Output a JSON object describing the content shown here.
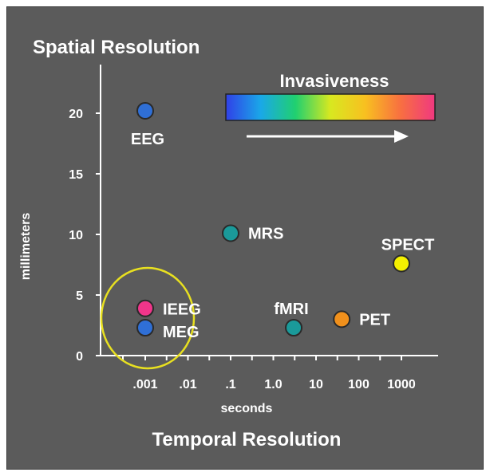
{
  "chart_data": {
    "type": "scatter",
    "title": "Spatial Resolution",
    "x_title": "Temporal Resolution",
    "xlabel": "seconds",
    "ylabel": "millimeters",
    "x_scale": "log",
    "x_ticks": [
      {
        "label": ".001",
        "value": 0.001
      },
      {
        "label": ".01",
        "value": 0.01
      },
      {
        "label": ".1",
        "value": 0.1
      },
      {
        "label": "1.0",
        "value": 1
      },
      {
        "label": "10",
        "value": 10
      },
      {
        "label": "100",
        "value": 100
      },
      {
        "label": "1000",
        "value": 1000
      }
    ],
    "y_ticks": [
      "0",
      "5",
      "10",
      "15",
      "20"
    ],
    "ylim": [
      0,
      23
    ],
    "points": [
      {
        "label": "EEG",
        "x": 0.001,
        "y": 20.2,
        "color": "#2f6fd6"
      },
      {
        "label": "MRS",
        "x": 0.1,
        "y": 10.1,
        "color": "#1a9a9a"
      },
      {
        "label": "SPECT",
        "x": 1000,
        "y": 7.6,
        "color": "#f4f000"
      },
      {
        "label": "IEEG",
        "x": 0.001,
        "y": 3.9,
        "color": "#f0358a"
      },
      {
        "label": "MEG",
        "x": 0.001,
        "y": 2.3,
        "color": "#2f6fd6"
      },
      {
        "label": "fMRI",
        "x": 3,
        "y": 2.3,
        "color": "#1a9a9a"
      },
      {
        "label": "PET",
        "x": 40,
        "y": 3.0,
        "color": "#f0901c"
      }
    ],
    "legend": {
      "title": "Invasiveness",
      "gradient": [
        "#3040e8",
        "#1aa8e8",
        "#20d070",
        "#d8e820",
        "#f8c020",
        "#f87040",
        "#f03880"
      ]
    },
    "highlight_circle_color": "#e8e020"
  }
}
